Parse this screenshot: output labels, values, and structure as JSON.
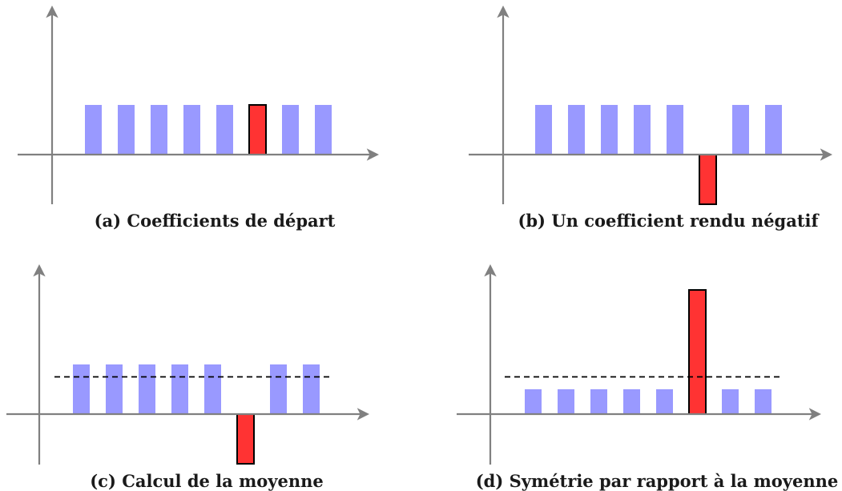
{
  "chart_data": [
    {
      "type": "bar",
      "caption": "(a) Coefficients de départ",
      "values": [
        1,
        1,
        1,
        1,
        1,
        1,
        1,
        1
      ],
      "highlight_index": 5,
      "mean": null
    },
    {
      "type": "bar",
      "caption": "(b) Un coefficient rendu négatif",
      "values": [
        1,
        1,
        1,
        1,
        1,
        -1,
        1,
        1
      ],
      "highlight_index": 5,
      "mean": null
    },
    {
      "type": "bar",
      "caption": "(c) Calcul de la moyenne",
      "values": [
        1,
        1,
        1,
        1,
        1,
        -1,
        1,
        1
      ],
      "highlight_index": 5,
      "mean": 0.75
    },
    {
      "type": "bar",
      "caption": "(d) Symétrie par rapport à la moyenne",
      "values": [
        0.5,
        0.5,
        0.5,
        0.5,
        0.5,
        2.5,
        0.5,
        0.5
      ],
      "highlight_index": 5,
      "mean": 0.75
    }
  ],
  "colors": {
    "bar": "#9999ff",
    "highlight": "#ff3333",
    "highlight_stroke": "#000000",
    "axis": "#808080",
    "mean_line": "#000000"
  }
}
